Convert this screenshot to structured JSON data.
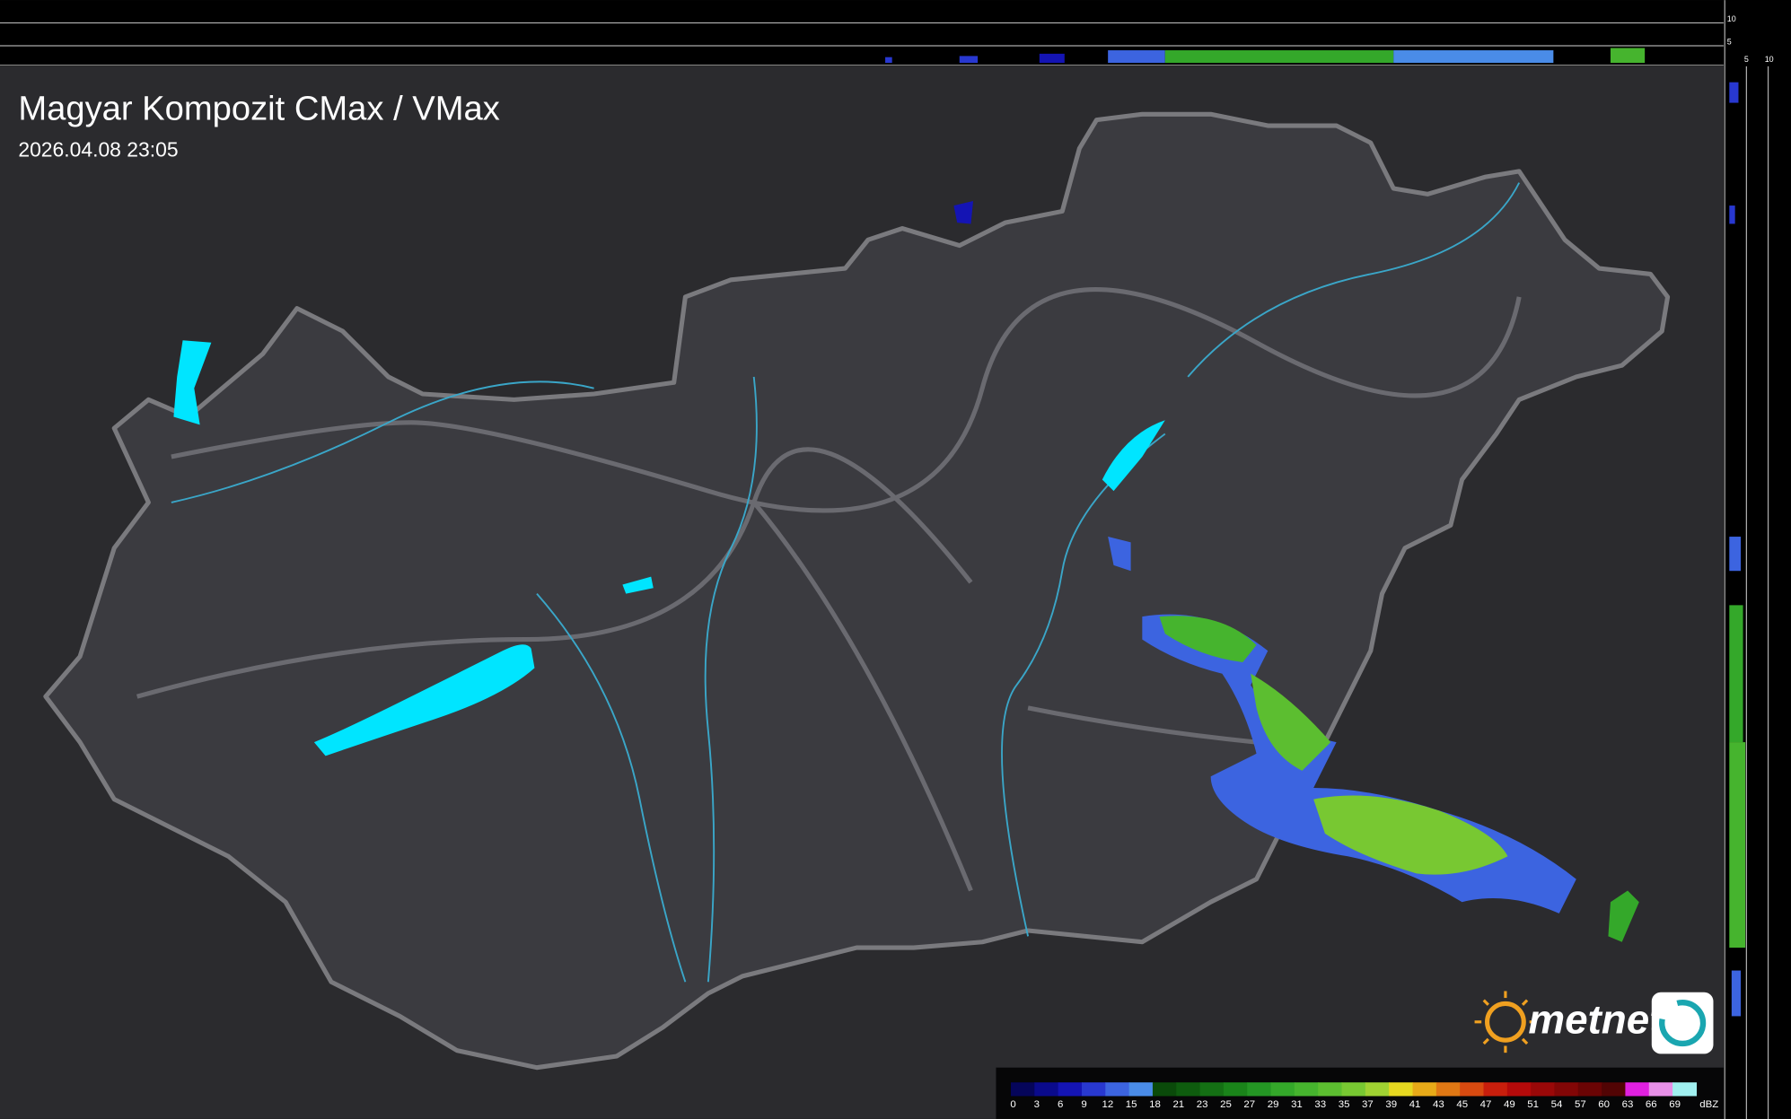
{
  "header": {
    "title": "Magyar Kompozit CMax / VMax",
    "timestamp": "2026.04.08 23:05"
  },
  "profile_scale": {
    "top_labels": [
      "10",
      "5"
    ],
    "side_labels": [
      "5",
      "10"
    ]
  },
  "logo": {
    "text": "metnet"
  },
  "legend": {
    "unit": "dBZ",
    "entries": [
      {
        "label": "0",
        "color": "#05055a"
      },
      {
        "label": "3",
        "color": "#0a0a8c"
      },
      {
        "label": "6",
        "color": "#1414b4"
      },
      {
        "label": "9",
        "color": "#2838d0"
      },
      {
        "label": "12",
        "color": "#3c64e0"
      },
      {
        "label": "15",
        "color": "#4a8ce8"
      },
      {
        "label": "18",
        "color": "#0a4a0a"
      },
      {
        "label": "21",
        "color": "#0e5c0e"
      },
      {
        "label": "23",
        "color": "#147014"
      },
      {
        "label": "25",
        "color": "#1a841a"
      },
      {
        "label": "27",
        "color": "#249624"
      },
      {
        "label": "29",
        "color": "#34a82a"
      },
      {
        "label": "31",
        "color": "#46b42e"
      },
      {
        "label": "33",
        "color": "#5cbe30"
      },
      {
        "label": "35",
        "color": "#78c832"
      },
      {
        "label": "37",
        "color": "#a0d232"
      },
      {
        "label": "39",
        "color": "#e6d820"
      },
      {
        "label": "41",
        "color": "#e8aa18"
      },
      {
        "label": "43",
        "color": "#e07814"
      },
      {
        "label": "45",
        "color": "#d84a10"
      },
      {
        "label": "47",
        "color": "#c81e0c"
      },
      {
        "label": "49",
        "color": "#b40a0a"
      },
      {
        "label": "51",
        "color": "#9a0808"
      },
      {
        "label": "54",
        "color": "#820606"
      },
      {
        "label": "57",
        "color": "#6a0404"
      },
      {
        "label": "60",
        "color": "#520404"
      },
      {
        "label": "63",
        "color": "#e020e0"
      },
      {
        "label": "66",
        "color": "#e890e8"
      },
      {
        "label": "69",
        "color": "#a0f0f0"
      }
    ]
  }
}
